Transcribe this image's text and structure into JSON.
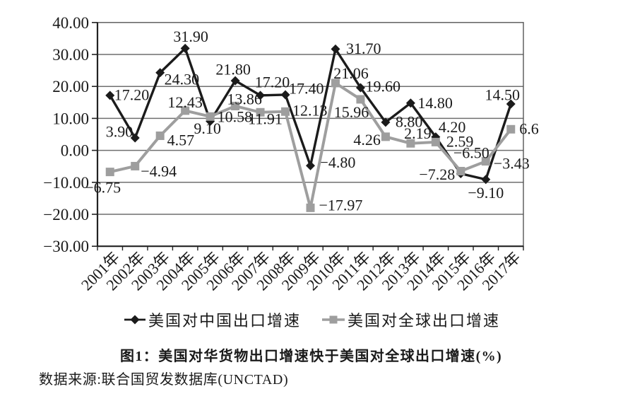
{
  "chart_data": {
    "type": "line",
    "categories": [
      "2001年",
      "2002年",
      "2003年",
      "2004年",
      "2005年",
      "2006年",
      "2007年",
      "2008年",
      "2009年",
      "2010年",
      "2011年",
      "2012年",
      "2013年",
      "2014年",
      "2015年",
      "2016年",
      "2017年"
    ],
    "series": [
      {
        "name": "美国对中国出口增速",
        "color": "#1b1b1b",
        "marker": "diamond",
        "values": [
          17.2,
          3.9,
          24.3,
          31.9,
          9.1,
          21.8,
          17.2,
          17.4,
          -4.8,
          31.7,
          19.6,
          8.8,
          14.8,
          4.2,
          -7.28,
          -9.1,
          14.5
        ],
        "labels": [
          "17.20",
          "3.90",
          "24.30",
          "31.90",
          "9.10",
          "21.80",
          "17.20",
          "17.40",
          "−4.80",
          "31.70",
          "19.60",
          "8.80",
          "14.80",
          "4.20",
          "−7.28",
          "−9.10",
          "14.50"
        ],
        "label_pos": [
          [
            "start",
            6,
            -1
          ],
          [
            "end",
            -3,
            -9
          ],
          [
            "start",
            6,
            9
          ],
          [
            "middle",
            8,
            -17
          ],
          [
            "middle",
            -4,
            10
          ],
          [
            "middle",
            -3,
            -16
          ],
          [
            "middle",
            17,
            -19
          ],
          [
            "start",
            5,
            -9
          ],
          [
            "start",
            13,
            -5
          ],
          [
            "start",
            15,
            -1
          ],
          [
            "start",
            7,
            -2
          ],
          [
            "start",
            14,
            -1
          ],
          [
            "start",
            10,
            0
          ],
          [
            "start",
            4,
            -14
          ],
          [
            "end",
            -8,
            1
          ],
          [
            "middle",
            0,
            19
          ],
          [
            "middle",
            -12,
            -13
          ]
        ]
      },
      {
        "name": "美国对全球出口增速",
        "color": "#9e9e9e",
        "marker": "square",
        "values": [
          -6.75,
          -4.94,
          4.57,
          12.43,
          10.58,
          13.86,
          11.91,
          12.13,
          -17.97,
          21.06,
          15.96,
          4.26,
          2.19,
          2.59,
          -6.5,
          -3.43,
          6.6
        ],
        "labels": [
          "−6.75",
          "−4.94",
          "4.57",
          "12.43",
          "10.58",
          "13.86",
          "11.91",
          "12.13",
          "−17.97",
          "21.06",
          "15.96",
          "4.26",
          "2.19",
          "2.59",
          "−6.50",
          "−3.43",
          "6.6"
        ],
        "label_pos": [
          [
            "middle",
            -10,
            22
          ],
          [
            "start",
            8,
            7
          ],
          [
            "start",
            10,
            6
          ],
          [
            "middle",
            0,
            -12
          ],
          [
            "start",
            10,
            0
          ],
          [
            "middle",
            13,
            -10
          ],
          [
            "middle",
            7,
            9
          ],
          [
            "start",
            10,
            -2
          ],
          [
            "start",
            12,
            -4
          ],
          [
            "middle",
            22,
            -14
          ],
          [
            "middle",
            -13,
            18
          ],
          [
            "end",
            -7,
            4
          ],
          [
            "middle",
            10,
            -14
          ],
          [
            "start",
            15,
            -1
          ],
          [
            "middle",
            15,
            -26
          ],
          [
            "start",
            11,
            3
          ],
          [
            "start",
            12,
            -1
          ]
        ]
      }
    ],
    "ylim": [
      -30,
      40
    ],
    "ytick_step": 10,
    "ytick_labels": [
      "40.00",
      "30.00",
      "20.00",
      "10.00",
      "0.00",
      "−10.00",
      "−20.00",
      "−30.00"
    ],
    "ytick_values": [
      40,
      30,
      20,
      10,
      0,
      -10,
      -20,
      -30
    ],
    "grid": "horizontal",
    "legend_position": "bottom-center",
    "title": "图1：美国对华货物出口增速快于美国对全球出口增速(%)",
    "source": "数据来源:联合国贸发数据库(UNCTAD)"
  }
}
